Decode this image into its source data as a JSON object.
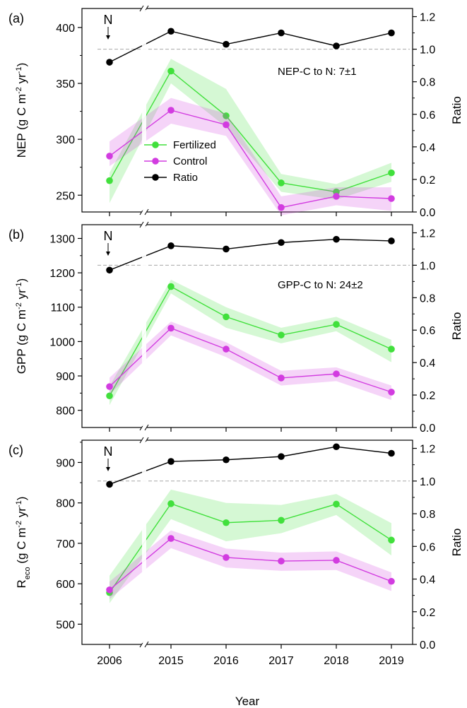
{
  "chart_data": [
    {
      "panel_label": "(a)",
      "type": "line",
      "categories": [
        "2006",
        "2015",
        "2016",
        "2017",
        "2018",
        "2019"
      ],
      "ylabel": {
        "main": "NEP (g C m",
        "sup1": "-2",
        "mid": " yr",
        "sup2": "-1",
        "end": ")"
      },
      "y2label": "Ratio",
      "ylim": [
        235,
        417
      ],
      "yticks": [
        "250",
        "300",
        "350",
        "400"
      ],
      "y2lim": [
        0,
        1.25
      ],
      "y2ticks": [
        "0.0",
        "0.2",
        "0.4",
        "0.6",
        "0.8",
        "1.0",
        "1.2"
      ],
      "n_marker": "N",
      "annotation": "NEP-C to N: 7±1",
      "legend": [
        {
          "name": "Fertilized",
          "color": "#41e03c"
        },
        {
          "name": "Control",
          "color": "#d23ce0"
        },
        {
          "name": "Ratio",
          "color": "#000000"
        }
      ],
      "series": [
        {
          "name": "Fertilized",
          "color": "#41e03c",
          "values": [
            263,
            361,
            321,
            261,
            253,
            270
          ],
          "upper": [
            270,
            372,
            345,
            269,
            260,
            279
          ],
          "lower": [
            243,
            350,
            311,
            253,
            246,
            262
          ]
        },
        {
          "name": "Control",
          "color": "#d23ce0",
          "values": [
            285,
            326,
            313,
            239,
            249,
            247
          ],
          "upper": [
            298,
            337,
            323,
            249,
            257,
            257
          ],
          "lower": [
            276,
            314,
            303,
            232,
            241,
            236
          ]
        },
        {
          "name": "Ratio",
          "color": "#000000",
          "axis": "right",
          "values": [
            0.92,
            1.11,
            1.03,
            1.1,
            1.02,
            1.1
          ]
        }
      ],
      "reference_line": 1.0
    },
    {
      "panel_label": "(b)",
      "type": "line",
      "categories": [
        "2006",
        "2015",
        "2016",
        "2017",
        "2018",
        "2019"
      ],
      "ylabel": {
        "main": "GPP (g C m",
        "sup1": "-2",
        "mid": " yr",
        "sup2": "-1",
        "end": ")"
      },
      "y2label": "Ratio",
      "ylim": [
        750,
        1340
      ],
      "yticks": [
        "800",
        "900",
        "1000",
        "1100",
        "1200",
        "1300"
      ],
      "y2lim": [
        0,
        1.25
      ],
      "y2ticks": [
        "0.0",
        "0.2",
        "0.4",
        "0.6",
        "0.8",
        "1.0",
        "1.2"
      ],
      "n_marker": "N",
      "annotation": "GPP-C to N: 24±2",
      "series": [
        {
          "name": "Fertilized",
          "color": "#41e03c",
          "values": [
            842,
            1160,
            1072,
            1019,
            1050,
            978
          ],
          "upper": [
            870,
            1180,
            1100,
            1040,
            1072,
            1005
          ],
          "lower": [
            815,
            1140,
            1040,
            995,
            1030,
            940
          ]
        },
        {
          "name": "Control",
          "color": "#d23ce0",
          "values": [
            869,
            1039,
            978,
            894,
            906,
            853
          ],
          "upper": [
            895,
            1058,
            998,
            915,
            925,
            872
          ],
          "lower": [
            846,
            1018,
            955,
            872,
            885,
            830
          ]
        },
        {
          "name": "Ratio",
          "color": "#000000",
          "axis": "right",
          "values": [
            0.97,
            1.12,
            1.1,
            1.14,
            1.16,
            1.15
          ]
        }
      ],
      "reference_line": 1.0
    },
    {
      "panel_label": "(c)",
      "type": "line",
      "categories": [
        "2006",
        "2015",
        "2016",
        "2017",
        "2018",
        "2019"
      ],
      "ylabel": {
        "main": "R",
        "sub": "eco",
        "rest": " (g C m",
        "sup1": "-2",
        "mid": " yr",
        "sup2": "-1",
        "end": ")"
      },
      "y2label": "Ratio",
      "ylim": [
        450,
        955
      ],
      "yticks": [
        "500",
        "600",
        "700",
        "800",
        "900"
      ],
      "y2lim": [
        0,
        1.25
      ],
      "y2ticks": [
        "0.0",
        "0.2",
        "0.4",
        "0.6",
        "0.8",
        "1.0",
        "1.2"
      ],
      "n_marker": "N",
      "series": [
        {
          "name": "Fertilized",
          "color": "#41e03c",
          "values": [
            578,
            798,
            751,
            757,
            797,
            708
          ],
          "upper": [
            620,
            833,
            800,
            795,
            822,
            750
          ],
          "lower": [
            552,
            760,
            705,
            725,
            770,
            670
          ]
        },
        {
          "name": "Control",
          "color": "#d23ce0",
          "values": [
            585,
            712,
            665,
            656,
            658,
            606
          ],
          "upper": [
            605,
            732,
            687,
            677,
            680,
            628
          ],
          "lower": [
            562,
            688,
            640,
            632,
            634,
            582
          ]
        },
        {
          "name": "Ratio",
          "color": "#000000",
          "axis": "right",
          "values": [
            0.98,
            1.12,
            1.13,
            1.15,
            1.21,
            1.17
          ]
        }
      ],
      "reference_line": 1.0
    }
  ],
  "xlabel": "Year"
}
